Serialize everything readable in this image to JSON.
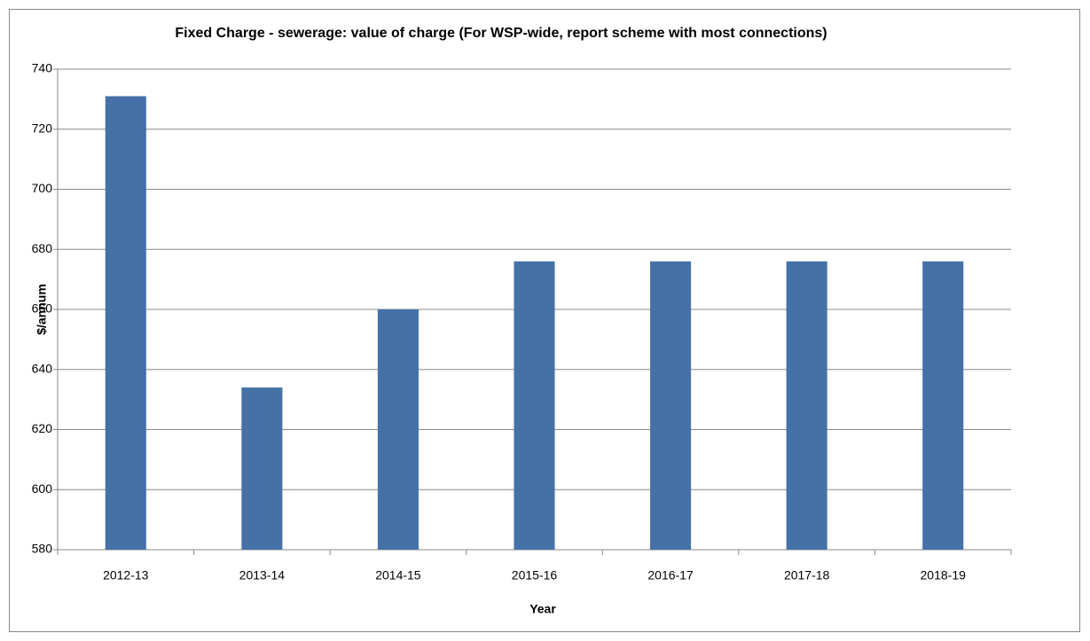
{
  "chart_data": {
    "type": "bar",
    "title": "Fixed Charge - sewerage: value of charge (For WSP-wide, report scheme with most connections)",
    "x_label": "Year",
    "y_label": "$/annum",
    "categories": [
      "2012-13",
      "2013-14",
      "2014-15",
      "2015-16",
      "2016-17",
      "2017-18",
      "2018-19"
    ],
    "values": [
      731,
      634,
      660,
      676,
      676,
      676,
      676
    ],
    "color": "#4571a7",
    "ylim": [
      580,
      740
    ],
    "yticks": [
      580,
      600,
      620,
      640,
      660,
      680,
      700,
      720,
      740
    ],
    "grid": true
  }
}
